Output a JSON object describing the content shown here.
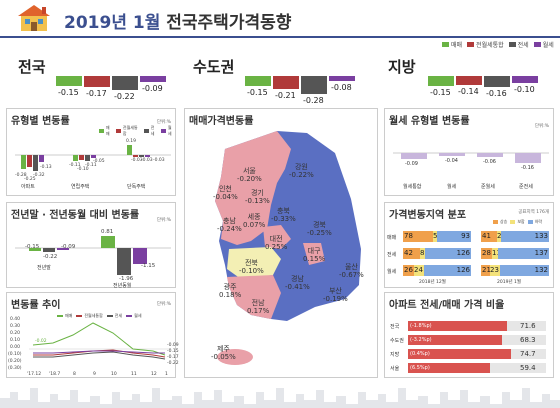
{
  "header": {
    "title_date": "2019년 1월",
    "title_main": "전국주택가격동향"
  },
  "legend": [
    {
      "label": "매매",
      "color": "#6ab344"
    },
    {
      "label": "전월세통합",
      "color": "#b03a3a"
    },
    {
      "label": "전세",
      "color": "#555555"
    },
    {
      "label": "월세",
      "color": "#7a3fa0"
    }
  ],
  "summary": [
    {
      "region": "전국",
      "values": [
        "-0.15",
        "-0.17",
        "-0.22",
        "-0.09"
      ]
    },
    {
      "region": "수도권",
      "values": [
        "-0.15",
        "-0.21",
        "-0.28",
        "-0.08"
      ]
    },
    {
      "region": "지방",
      "values": [
        "-0.15",
        "-0.14",
        "-0.16",
        "-0.10"
      ]
    }
  ],
  "panel_type": {
    "title": "유형별 변동률",
    "unit": "단위:%",
    "groups": [
      {
        "label": "아파트",
        "values": [
          "-0.28",
          "-0.25",
          "-0.32",
          "-0.13"
        ]
      },
      {
        "label": "연립주택",
        "values": [
          "-0.11",
          "-0.10",
          "-0.11",
          "-0.05"
        ]
      },
      {
        "label": "단독주택",
        "values": [
          "0.19",
          "-0.03",
          "-0.03",
          "-0.03"
        ]
      }
    ]
  },
  "panel_year": {
    "title": "전년말 · 전년동월 대비 변동률",
    "unit": "단위:%",
    "groups": [
      {
        "label": "전년말",
        "values": [
          "-0.15",
          "-0.22",
          "-0.09"
        ]
      },
      {
        "label": "전년동월",
        "values": [
          "0.81",
          "-1.96",
          "-1.15"
        ]
      }
    ]
  },
  "panel_trend": {
    "title": "변동률 추이",
    "unit": "단위:%",
    "yticks": [
      "0.40",
      "0.30",
      "0.20",
      "0.10",
      "0.00",
      "(0.10)",
      "(0.20)",
      "(0.30)"
    ],
    "xticks": [
      "'17.12",
      "'18.7",
      "8",
      "9",
      "10",
      "11",
      "12",
      "1"
    ],
    "series_labels": [
      "매매",
      "전월세통합",
      "전세",
      "월세"
    ],
    "annotations": [
      "-0.02",
      "-0.15",
      "-0.17",
      "-0.22",
      "-0.09"
    ]
  },
  "panel_map": {
    "title": "매매가격변동률",
    "regions": [
      {
        "name": "서울",
        "value": "-0.20%"
      },
      {
        "name": "인천",
        "value": "-0.04%"
      },
      {
        "name": "경기",
        "value": "-0.13%"
      },
      {
        "name": "강원",
        "value": "-0.22%"
      },
      {
        "name": "충북",
        "value": "-0.33%"
      },
      {
        "name": "세종",
        "value": "0.07%"
      },
      {
        "name": "충남",
        "value": "-0.24%"
      },
      {
        "name": "대전",
        "value": "0.25%"
      },
      {
        "name": "경북",
        "value": "-0.25%"
      },
      {
        "name": "대구",
        "value": "0.15%"
      },
      {
        "name": "전북",
        "value": "-0.10%"
      },
      {
        "name": "울산",
        "value": "-0.67%"
      },
      {
        "name": "경남",
        "value": "-0.41%"
      },
      {
        "name": "광주",
        "value": "0.18%"
      },
      {
        "name": "부산",
        "value": "-0.19%"
      },
      {
        "name": "전남",
        "value": "0.17%"
      },
      {
        "name": "제주",
        "value": "-0.05%"
      }
    ]
  },
  "panel_rent": {
    "title": "월세 유형별 변동률",
    "unit": "단위:%",
    "groups": [
      {
        "label": "월세통합",
        "value": "-0.09"
      },
      {
        "label": "월세",
        "value": "-0.04"
      },
      {
        "label": "준월세",
        "value": "-0.06"
      },
      {
        "label": "준전세",
        "value": "-0.16"
      }
    ]
  },
  "panel_dist": {
    "title": "가격변동지역 분포",
    "unit": "공표지역 176개",
    "legend": [
      "상승",
      "보합",
      "하락"
    ],
    "rows": [
      {
        "label": "매매",
        "a": [
          "78",
          "5",
          "93"
        ],
        "b": [
          "41",
          "2",
          "133"
        ]
      },
      {
        "label": "전세",
        "a": [
          "42",
          "8",
          "126"
        ],
        "b": [
          "28",
          "11",
          "137"
        ]
      },
      {
        "label": "월세",
        "a": [
          "26",
          "24",
          "126"
        ],
        "b": [
          "21",
          "23",
          "132"
        ]
      }
    ],
    "periods": [
      "2018년 12월",
      "2019년 1월"
    ]
  },
  "panel_ratio": {
    "title": "아파트 전세/매매 가격 비율",
    "rows": [
      {
        "label": "전국",
        "change": "(-1.8%p)",
        "value": "71.6",
        "fill": 0.716
      },
      {
        "label": "수도권",
        "change": "(-3.2%p)",
        "value": "68.3",
        "fill": 0.683
      },
      {
        "label": "지방",
        "change": "(0.4%p)",
        "value": "74.7",
        "fill": 0.747
      },
      {
        "label": "서울",
        "change": "(6.5%p)",
        "value": "59.4",
        "fill": 0.594
      }
    ]
  }
}
